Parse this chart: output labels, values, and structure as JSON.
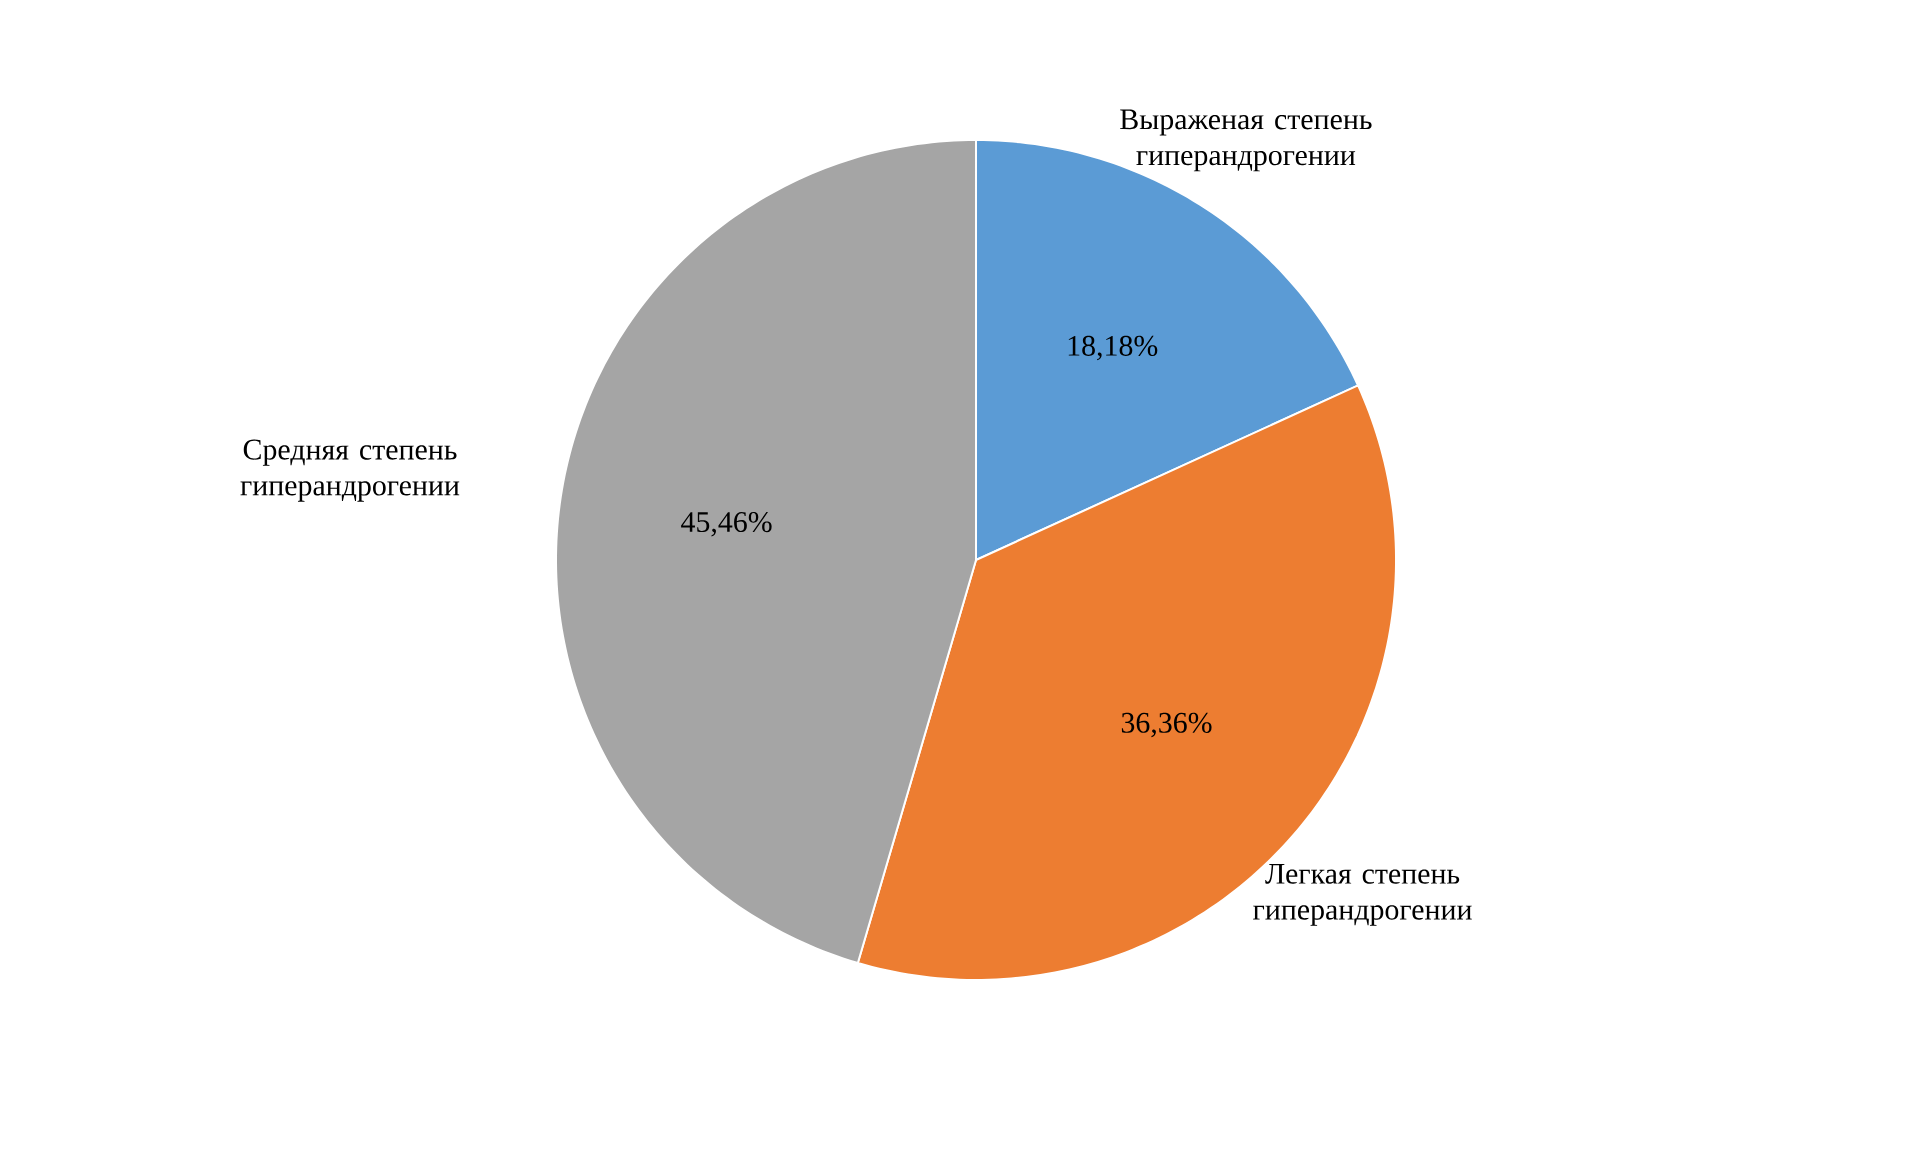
{
  "chart_data": {
    "type": "pie",
    "categories": [
      "Выраженая степень гиперандрогении",
      "Легкая степень гиперандрогении",
      "Средняя степень гиперандрогении"
    ],
    "values": [
      18.18,
      36.36,
      45.46
    ],
    "colors": [
      "#5b9bd5",
      "#ed7d31",
      "#a5a5a5"
    ],
    "value_labels": [
      "18,18%",
      "36,36%",
      "45,46%"
    ]
  }
}
